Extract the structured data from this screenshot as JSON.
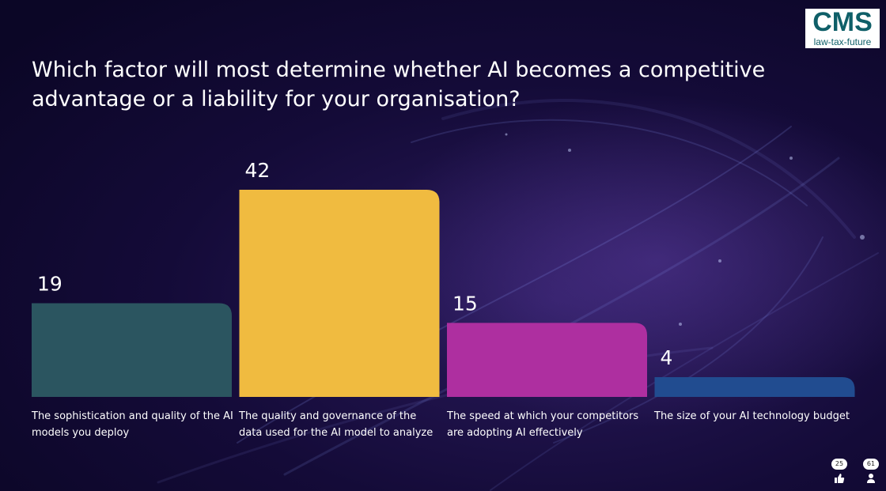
{
  "question": "Which factor will most determine whether AI becomes a competitive advantage or a liability for your organisation?",
  "logo": {
    "mark": "CMS",
    "tagline": "law-tax-future"
  },
  "counters": {
    "likes": "25",
    "participants": "61"
  },
  "chart_data": {
    "type": "bar",
    "categories": [
      "The sophistication and quality of the AI models you deploy",
      "The quality and governance of the data used for the AI model to analyze",
      "The speed at which your competitors are adopting  AI effectively",
      "The size of your AI technology budget"
    ],
    "values": [
      19,
      42,
      15,
      4
    ],
    "colors": [
      "#2b5560",
      "#f0bb40",
      "#ae2fa0",
      "#214c90"
    ],
    "ylim": [
      0,
      42
    ],
    "grid": false,
    "legend": "none"
  }
}
